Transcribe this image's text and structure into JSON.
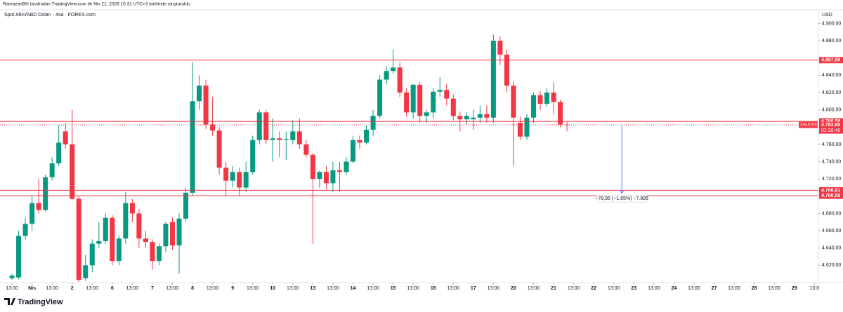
{
  "chart_data": {
    "type": "candlestick",
    "credit": "RamazanBH tarafından TradingView.com ile Nis 21, 2026 10:31 UTC+3 tarihinde oluşturuldu",
    "title": "Spot Altın/ABD Doları · 4sa · FOREX.com",
    "unit": "USD",
    "brand": "TradingView",
    "up_color": "#089981",
    "down_color": "#f23645",
    "xlim": [
      -1.79,
      120.6
    ],
    "ylim": [
      4600,
      4915
    ],
    "yticks": [
      {
        "value": 4900,
        "label": "4.900,00"
      },
      {
        "value": 4880,
        "label": "4.880,00"
      },
      {
        "value": 4840,
        "label": "4.840,00"
      },
      {
        "value": 4820,
        "label": "4.820,00"
      },
      {
        "value": 4800,
        "label": "4.800,00"
      },
      {
        "value": 4760,
        "label": "4.760,00"
      },
      {
        "value": 4740,
        "label": "4.740,00"
      },
      {
        "value": 4720,
        "label": "4.720,00"
      },
      {
        "value": 4680,
        "label": "4.680,00"
      },
      {
        "value": 4660,
        "label": "4.660,00"
      },
      {
        "value": 4640,
        "label": "4.640,00"
      },
      {
        "value": 4620,
        "label": "4.620,00"
      }
    ],
    "xticks": [
      {
        "value": 0,
        "label": "13:00"
      },
      {
        "value": 3,
        "label": "Nis"
      },
      {
        "value": 6,
        "label": "13:00"
      },
      {
        "value": 9,
        "label": "2"
      },
      {
        "value": 12,
        "label": "13:00"
      },
      {
        "value": 15,
        "label": "6"
      },
      {
        "value": 18,
        "label": "13:00"
      },
      {
        "value": 21,
        "label": "7"
      },
      {
        "value": 24,
        "label": "13:00"
      },
      {
        "value": 27,
        "label": "8"
      },
      {
        "value": 30,
        "label": "13:00"
      },
      {
        "value": 33,
        "label": "9"
      },
      {
        "value": 36,
        "label": "13:00"
      },
      {
        "value": 39,
        "label": "10"
      },
      {
        "value": 42,
        "label": "13:00"
      },
      {
        "value": 45,
        "label": "13"
      },
      {
        "value": 48,
        "label": "13:00"
      },
      {
        "value": 51,
        "label": "14"
      },
      {
        "value": 54,
        "label": "13:00"
      },
      {
        "value": 57,
        "label": "15"
      },
      {
        "value": 60,
        "label": "13:00"
      },
      {
        "value": 63,
        "label": "16"
      },
      {
        "value": 66,
        "label": "13:00"
      },
      {
        "value": 69,
        "label": "17"
      },
      {
        "value": 72,
        "label": "13:00"
      },
      {
        "value": 75,
        "label": "20"
      },
      {
        "value": 78,
        "label": "13:00"
      },
      {
        "value": 81,
        "label": "21"
      },
      {
        "value": 84,
        "label": "13:00"
      },
      {
        "value": 87,
        "label": "22"
      },
      {
        "value": 90,
        "label": "13:00"
      },
      {
        "value": 93,
        "label": "23"
      },
      {
        "value": 96,
        "label": "13:00"
      },
      {
        "value": 99,
        "label": "24"
      },
      {
        "value": 102,
        "label": "13:00"
      },
      {
        "value": 105,
        "label": "27"
      },
      {
        "value": 108,
        "label": "13:00"
      },
      {
        "value": 111,
        "label": "28"
      },
      {
        "value": 114,
        "label": "13:00"
      },
      {
        "value": 117,
        "label": "29"
      },
      {
        "value": 120,
        "label": "13:0"
      }
    ],
    "open": [
      4605,
      4606,
      4654,
      4668,
      4692,
      4684,
      4722,
      4738,
      4775,
      4760,
      4697,
      4605,
      4620,
      4645,
      4648,
      4675,
      4625,
      4651,
      4692,
      4680,
      4651,
      4647,
      4625,
      4642,
      4670,
      4643,
      4674,
      4704,
      4810,
      4828,
      4783,
      4776,
      4733,
      4718,
      4728,
      4710,
      4728,
      4765,
      4797,
      4765,
      4767,
      4765,
      4765,
      4775,
      4760,
      4748,
      4720,
      4728,
      4715,
      4730,
      4728,
      4740,
      4765,
      4762,
      4777,
      4793,
      4835,
      4845,
      4849,
      4820,
      4797,
      4829,
      4793,
      4797,
      4821,
      4823,
      4813,
      4793,
      4789,
      4789,
      4791,
      4795,
      4791,
      4880,
      4864,
      4828,
      4785,
      4769,
      4791,
      4817,
      4807,
      4820,
      4809,
      4783
    ],
    "high": [
      4610,
      4660,
      4675,
      4700,
      4720,
      4725,
      4745,
      4782,
      4785,
      4800,
      4700,
      4632,
      4650,
      4670,
      4680,
      4678,
      4655,
      4705,
      4697,
      4685,
      4660,
      4650,
      4645,
      4670,
      4675,
      4680,
      4710,
      4855,
      4840,
      4835,
      4815,
      4780,
      4740,
      4735,
      4733,
      4740,
      4770,
      4800,
      4800,
      4790,
      4775,
      4775,
      4788,
      4790,
      4765,
      4750,
      4730,
      4735,
      4740,
      4740,
      4745,
      4770,
      4770,
      4782,
      4800,
      4840,
      4850,
      4870,
      4855,
      4825,
      4830,
      4832,
      4800,
      4825,
      4838,
      4830,
      4818,
      4798,
      4797,
      4800,
      4805,
      4805,
      4887,
      4885,
      4870,
      4833,
      4792,
      4795,
      4820,
      4822,
      4825,
      4832,
      4812,
      4786
    ],
    "low": [
      4603,
      4604,
      4650,
      4660,
      4680,
      4682,
      4718,
      4735,
      4755,
      4695,
      4601,
      4602,
      4612,
      4640,
      4645,
      4620,
      4620,
      4645,
      4670,
      4640,
      4640,
      4615,
      4620,
      4635,
      4638,
      4610,
      4670,
      4700,
      4800,
      4778,
      4770,
      4725,
      4700,
      4710,
      4700,
      4705,
      4725,
      4760,
      4760,
      4740,
      4745,
      4742,
      4760,
      4755,
      4745,
      4645,
      4710,
      4708,
      4705,
      4705,
      4725,
      4738,
      4755,
      4760,
      4770,
      4790,
      4830,
      4842,
      4815,
      4792,
      4790,
      4785,
      4785,
      4790,
      4815,
      4805,
      4788,
      4775,
      4783,
      4777,
      4785,
      4785,
      4785,
      4852,
      4820,
      4735,
      4765,
      4765,
      4785,
      4800,
      4803,
      4795,
      4780,
      4775
    ],
    "close": [
      4608,
      4654,
      4668,
      4692,
      4684,
      4722,
      4738,
      4762,
      4760,
      4697,
      4603,
      4620,
      4645,
      4648,
      4675,
      4625,
      4651,
      4692,
      4680,
      4651,
      4647,
      4625,
      4642,
      4668,
      4643,
      4674,
      4704,
      4810,
      4828,
      4783,
      4776,
      4733,
      4718,
      4728,
      4710,
      4728,
      4765,
      4797,
      4765,
      4767,
      4765,
      4766,
      4775,
      4760,
      4748,
      4720,
      4728,
      4715,
      4730,
      4728,
      4740,
      4765,
      4762,
      4777,
      4793,
      4835,
      4845,
      4849,
      4820,
      4797,
      4829,
      4793,
      4797,
      4821,
      4823,
      4813,
      4793,
      4789,
      4793,
      4791,
      4795,
      4791,
      4880,
      4864,
      4828,
      4791,
      4769,
      4791,
      4817,
      4807,
      4820,
      4809,
      4783,
      4782.6
    ],
    "levels": [
      {
        "value": 4857.56,
        "label": "4.857,56"
      },
      {
        "value": 4786.59,
        "label": "4.786,59"
      },
      {
        "value": 4706.81,
        "label": "4.706,81"
      },
      {
        "value": 4700.58,
        "label": "4.700,58"
      }
    ],
    "price": {
      "value": 4782.6,
      "label": "4.782,60",
      "symbol": "XAUUSD",
      "countdown": "02:28:46"
    },
    "measure": {
      "x": 91.2,
      "start": 4782.6,
      "change": -78.95,
      "label": "−78,95 (−1,65%) −7.895"
    }
  }
}
